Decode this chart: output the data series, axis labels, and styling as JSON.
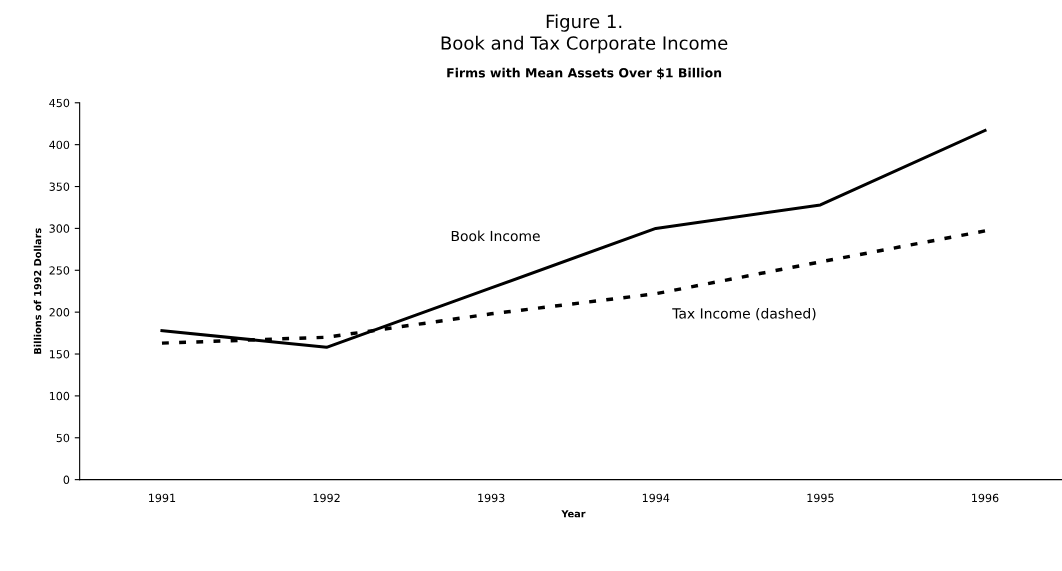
{
  "chart_data": {
    "type": "line",
    "title": "Figure 1.\nBook and Tax Corporate Income",
    "subtitle": "Firms with Mean Assets Over $1 Billion",
    "xlabel": "Year",
    "ylabel": "Billions of 1992 Dollars",
    "categories": [
      "1991",
      "1992",
      "1993",
      "1994",
      "1995",
      "1996"
    ],
    "series": [
      {
        "name": "Book Income",
        "color": "#000000",
        "line_style": "solid",
        "values": [
          178,
          158,
          229,
          300,
          328,
          417
        ]
      },
      {
        "name": "Tax Income (dashed)",
        "color": "#000000",
        "line_style": "dashed",
        "values": [
          163,
          170,
          198,
          222,
          260,
          297
        ]
      }
    ],
    "ylim": [
      0,
      450
    ],
    "yticks": [
      0,
      50,
      100,
      150,
      200,
      250,
      300,
      350,
      400,
      450
    ],
    "grid": false,
    "legend": false,
    "marker": "none"
  }
}
